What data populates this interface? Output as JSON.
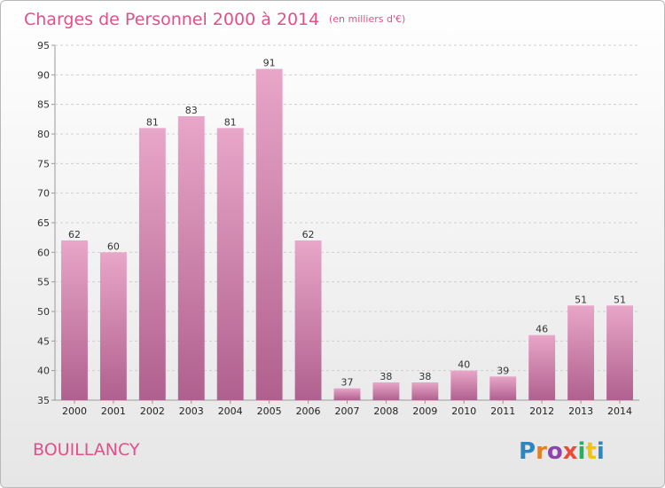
{
  "chart_data": {
    "type": "bar",
    "title": "Charges de Personnel 2000 à 2014",
    "subtitle": "(en milliers d'€)",
    "categories": [
      "2000",
      "2001",
      "2002",
      "2003",
      "2004",
      "2005",
      "2006",
      "2007",
      "2008",
      "2009",
      "2010",
      "2011",
      "2012",
      "2013",
      "2014"
    ],
    "values": [
      62,
      60,
      81,
      83,
      81,
      91,
      62,
      37,
      38,
      38,
      40,
      39,
      46,
      51,
      51
    ],
    "ylim": [
      35,
      95
    ],
    "yticks": [
      35,
      40,
      45,
      50,
      55,
      60,
      65,
      70,
      75,
      80,
      85,
      90,
      95
    ],
    "grid": true,
    "bar_color_top": "#e8a6c8",
    "bar_color_bottom": "#b0608e"
  },
  "footer": {
    "commune": "BOUILLANCY",
    "logo_letters": [
      "P",
      "r",
      "o",
      "x",
      "i",
      "t",
      "i"
    ],
    "logo_colors": [
      "#2e86c1",
      "#e67e22",
      "#8e44ad",
      "#e74c3c",
      "#27ae60",
      "#f1c40f",
      "#2e86c1"
    ]
  }
}
